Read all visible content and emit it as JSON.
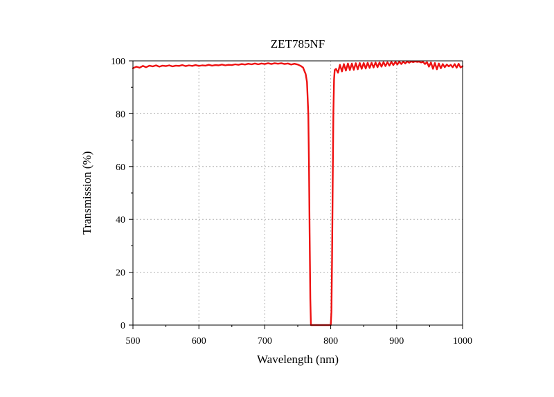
{
  "chart_data": {
    "type": "line",
    "title": "ZET785NF",
    "xlabel": "Wavelength (nm)",
    "ylabel": "Transmission (%)",
    "xlim": [
      500,
      1000
    ],
    "ylim": [
      0,
      100
    ],
    "xticks": [
      500,
      600,
      700,
      800,
      900,
      1000
    ],
    "yticks": [
      0,
      20,
      40,
      60,
      80,
      100
    ],
    "grid": true,
    "grid_style": "dotted",
    "line_color": "#ee1111",
    "series": [
      {
        "x": [
          500,
          505,
          510,
          515,
          520,
          525,
          530,
          535,
          540,
          545,
          550,
          555,
          560,
          565,
          570,
          575,
          580,
          585,
          590,
          595,
          600,
          605,
          610,
          615,
          620,
          625,
          630,
          635,
          640,
          645,
          650,
          655,
          660,
          665,
          670,
          675,
          680,
          685,
          690,
          695,
          700,
          705,
          710,
          715,
          720,
          725,
          730,
          735,
          740,
          745,
          750,
          755,
          758,
          762,
          764,
          766,
          767,
          768,
          769,
          770,
          775,
          780,
          785,
          790,
          795,
          799,
          800,
          801,
          802,
          803,
          804,
          805,
          806,
          808,
          811,
          814,
          817,
          820,
          823,
          826,
          829,
          832,
          835,
          838,
          841,
          844,
          847,
          850,
          853,
          856,
          859,
          862,
          865,
          868,
          871,
          874,
          877,
          880,
          883,
          886,
          889,
          892,
          895,
          898,
          901,
          904,
          907,
          910,
          913,
          916,
          919,
          922,
          925,
          928,
          931,
          934,
          937,
          940,
          943,
          946,
          949,
          952,
          955,
          958,
          961,
          964,
          967,
          970,
          973,
          976,
          979,
          982,
          985,
          988,
          991,
          994,
          997,
          1000
        ],
        "y": [
          97.2,
          97.8,
          97.4,
          98.1,
          97.6,
          98.2,
          97.9,
          98.3,
          97.8,
          98.2,
          98.0,
          98.3,
          97.9,
          98.2,
          98.1,
          98.4,
          98.0,
          98.3,
          98.1,
          98.4,
          98.1,
          98.3,
          98.2,
          98.5,
          98.2,
          98.4,
          98.3,
          98.6,
          98.3,
          98.5,
          98.4,
          98.7,
          98.5,
          98.8,
          98.6,
          98.9,
          98.7,
          99.0,
          98.7,
          99.0,
          98.8,
          99.1,
          98.8,
          99.1,
          98.9,
          99.1,
          98.8,
          99.0,
          98.6,
          98.9,
          98.6,
          98.0,
          97.5,
          95.0,
          92.0,
          80.0,
          60.0,
          35.0,
          10.0,
          0,
          0,
          0,
          0,
          0,
          0,
          0,
          0,
          5.0,
          25.0,
          55.0,
          80.0,
          93.0,
          96.5,
          97.0,
          95.5,
          98.5,
          96.0,
          98.8,
          96.3,
          99.0,
          96.5,
          99.0,
          96.6,
          99.1,
          96.8,
          99.2,
          97.0,
          99.2,
          97.1,
          99.3,
          97.3,
          99.3,
          97.5,
          99.4,
          97.6,
          99.4,
          97.8,
          99.5,
          98.0,
          99.5,
          98.2,
          99.6,
          98.4,
          99.6,
          98.6,
          99.7,
          98.8,
          99.7,
          99.0,
          99.8,
          99.3,
          99.8,
          99.5,
          99.8,
          99.6,
          99.7,
          99.4,
          99.6,
          98.8,
          99.5,
          97.8,
          99.4,
          97.0,
          99.2,
          96.8,
          99.0,
          97.2,
          98.8,
          97.6,
          98.6,
          97.9,
          98.5,
          97.6,
          98.8,
          97.4,
          98.9,
          97.5,
          98.0
        ]
      }
    ]
  }
}
